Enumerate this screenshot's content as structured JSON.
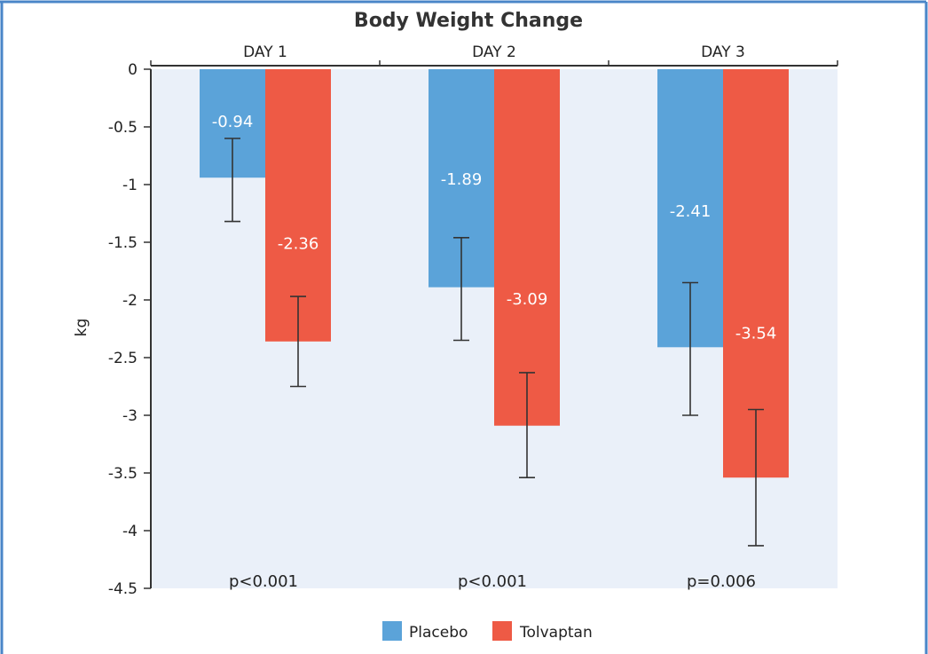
{
  "chart_data": {
    "type": "bar",
    "title": "Body Weight Change",
    "categories": [
      "DAY 1",
      "DAY 2",
      "DAY 3"
    ],
    "ylabel": "kg",
    "ylim": [
      -4.5,
      0
    ],
    "yticks": [
      "0",
      "-0.5",
      "-1",
      "-1.5",
      "-2",
      "-2.5",
      "-3",
      "-3.5",
      "-4",
      "-4.5"
    ],
    "ytick_values": [
      0,
      -0.5,
      -1,
      -1.5,
      -2,
      -2.5,
      -3,
      -3.5,
      -4,
      -4.5
    ],
    "grid": false,
    "legend_position": "bottom",
    "series": [
      {
        "name": "Placebo",
        "color": "#5BA3D9",
        "values": [
          -0.94,
          -1.89,
          -2.41
        ],
        "labels": [
          "-0.94",
          "-1.89",
          "-2.41"
        ],
        "error_low": [
          -1.32,
          -2.35,
          -3.0
        ],
        "error_high": [
          -0.6,
          -1.46,
          -1.85
        ]
      },
      {
        "name": "Tolvaptan",
        "color": "#EE5A45",
        "values": [
          -2.36,
          -3.09,
          -3.54
        ],
        "labels": [
          "-2.36",
          "-3.09",
          "-3.54"
        ],
        "error_low": [
          -2.75,
          -3.54,
          -4.13
        ],
        "error_high": [
          -1.97,
          -2.63,
          -2.95
        ]
      }
    ],
    "p_values": [
      "p<0.001",
      "p<0.001",
      "p=0.006"
    ],
    "plot_background": "#EAF0F9",
    "frame_color": "#4A86C8"
  }
}
